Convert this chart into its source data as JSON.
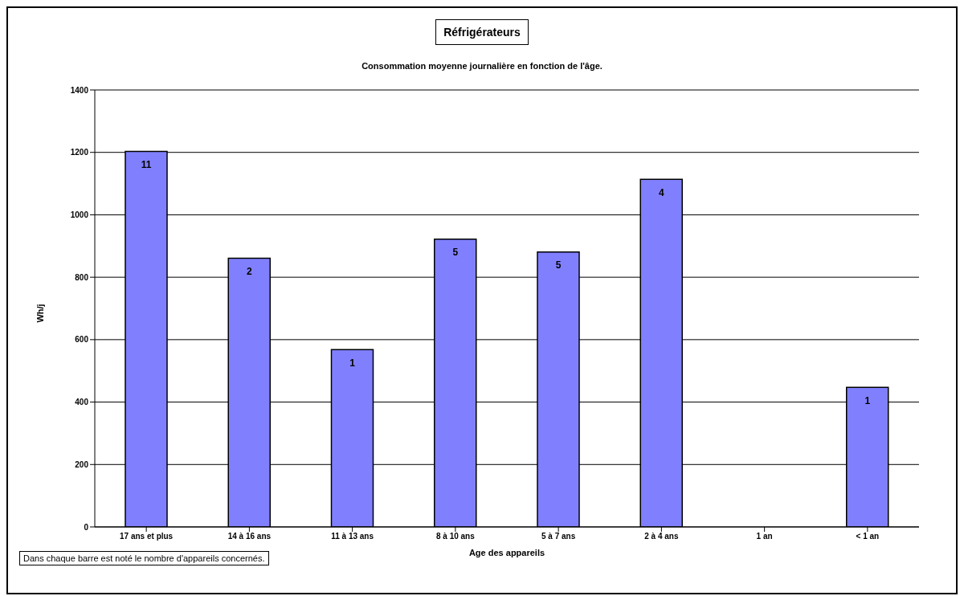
{
  "chart_data": {
    "type": "bar",
    "title": "Réfrigérateurs",
    "subtitle": "Consommation moyenne journalière en fonction de l'âge.",
    "xlabel": "Age des appareils",
    "ylabel": "Wh/j",
    "categories": [
      "17 ans et plus",
      "14 à 16 ans",
      "11 à 13 ans",
      "8 à 10 ans",
      "5 à 7 ans",
      "2 à 4 ans",
      "1 an",
      "< 1 an"
    ],
    "values": [
      1203,
      861,
      568,
      922,
      881,
      1114,
      null,
      447
    ],
    "color": "#8080ff",
    "ylim": [
      0,
      1400
    ],
    "yticks": [
      0,
      200,
      400,
      600,
      800,
      1000,
      1200,
      1400
    ],
    "grid": "y",
    "annotations": [
      "Dans chaque barre est noté le nombre d'appareils concernés.",
      {
        "text": "11",
        "x": "17 ans et plus",
        "y": 1203
      },
      {
        "text": "2",
        "x": "14 à 16 ans",
        "y": 861
      },
      {
        "text": "1",
        "x": "11 à 13 ans",
        "y": 568
      },
      {
        "text": "5",
        "x": "8 à 10 ans",
        "y": 922
      },
      {
        "text": "5",
        "x": "5 à 7 ans",
        "y": 881
      },
      {
        "text": "4",
        "x": "2 à 4 ans",
        "y": 1114
      },
      {
        "text": "1",
        "x": "< 1 an",
        "y": 447
      }
    ]
  }
}
